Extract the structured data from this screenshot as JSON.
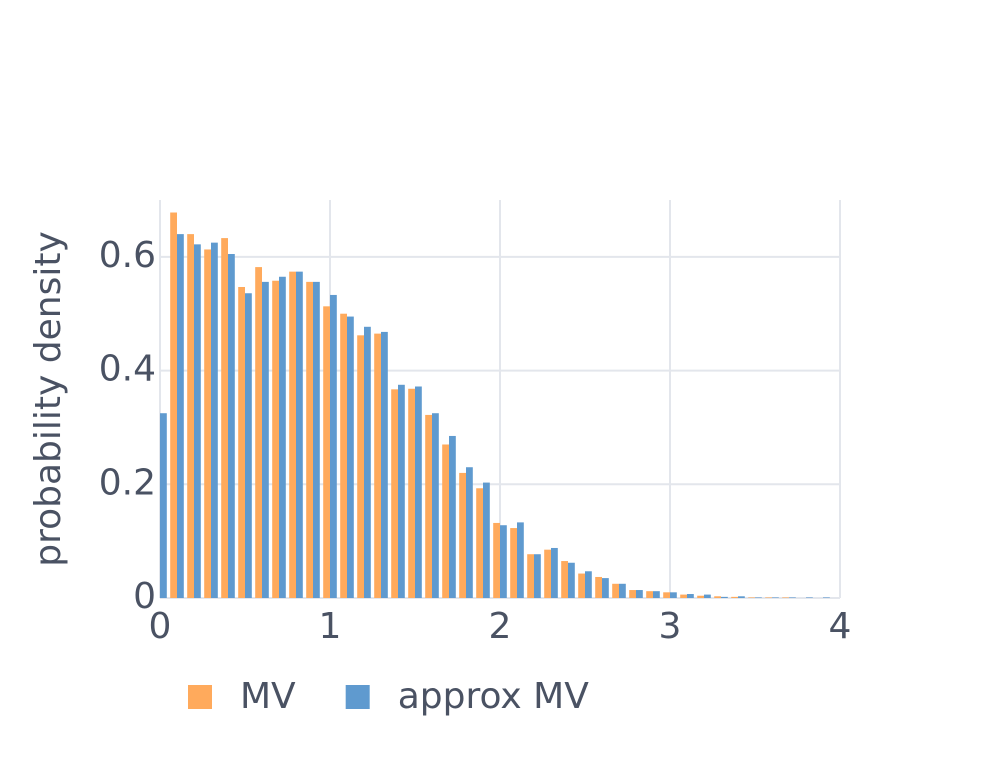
{
  "chart_data": {
    "type": "bar",
    "y_label": "probability density",
    "x": [
      0,
      0.1,
      0.2,
      0.3,
      0.4,
      0.5,
      0.6,
      0.7,
      0.8,
      0.9,
      1.0,
      1.1,
      1.2,
      1.3,
      1.4,
      1.5,
      1.6,
      1.7,
      1.8,
      1.9,
      2.0,
      2.1,
      2.2,
      2.3,
      2.4,
      2.5,
      2.6,
      2.7,
      2.8,
      2.9,
      3.0,
      3.1,
      3.2,
      3.3,
      3.4,
      3.5,
      3.6,
      3.7,
      3.8,
      3.9
    ],
    "series": [
      {
        "name": "MV",
        "color": "#ffaa5c",
        "values": [
          null,
          0.678,
          0.64,
          0.613,
          0.633,
          0.547,
          0.582,
          0.558,
          0.574,
          0.556,
          0.513,
          0.5,
          0.462,
          0.465,
          0.367,
          0.368,
          0.322,
          0.27,
          0.22,
          0.193,
          0.132,
          0.123,
          0.077,
          0.085,
          0.065,
          0.043,
          0.037,
          0.025,
          0.014,
          0.012,
          0.01,
          0.006,
          0.004,
          0.003,
          0.002,
          0.001,
          0.001,
          0.001,
          0,
          0
        ]
      },
      {
        "name": "approx MV",
        "color": "#5f9acf",
        "values": [
          0.325,
          0.64,
          0.622,
          0.625,
          0.605,
          0.536,
          0.556,
          0.565,
          0.574,
          0.556,
          0.533,
          0.495,
          0.477,
          0.468,
          0.375,
          0.372,
          0.325,
          0.285,
          0.23,
          0.203,
          0.128,
          0.133,
          0.077,
          0.088,
          0.062,
          0.047,
          0.035,
          0.025,
          0.014,
          0.012,
          0.01,
          0.007,
          0.006,
          0.002,
          0.003,
          0.001,
          0.001,
          0.001,
          0.001,
          0.001
        ]
      }
    ],
    "xlim": [
      0,
      4
    ],
    "xticks": [
      0,
      1,
      2,
      3,
      4
    ],
    "ylim": [
      0,
      0.7
    ],
    "yticks": [
      0,
      0.2,
      0.4,
      0.6
    ],
    "grid": true,
    "legend": "bottom"
  }
}
